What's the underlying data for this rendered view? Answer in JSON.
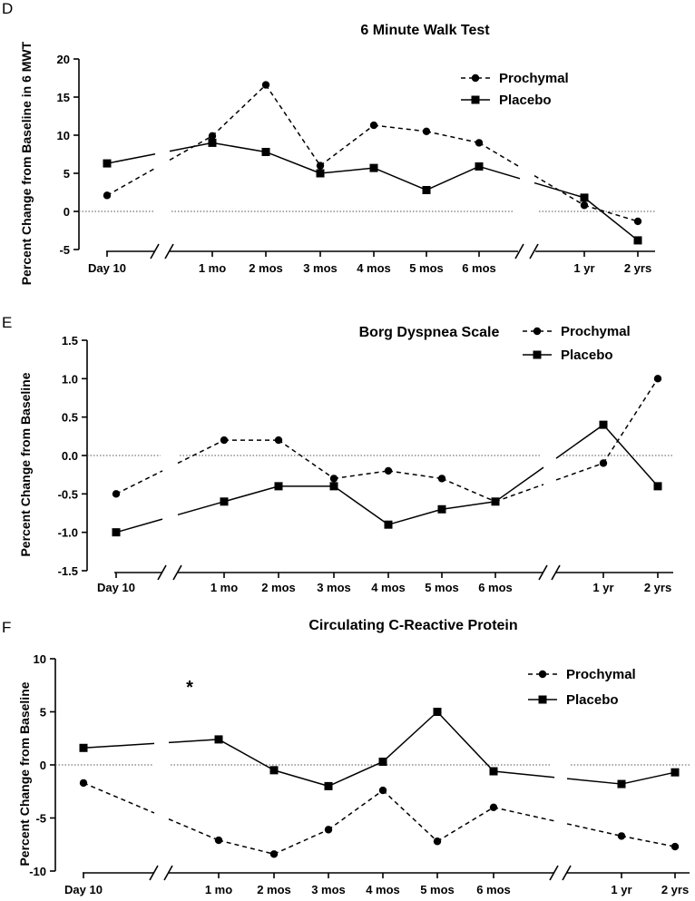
{
  "chart_data": [
    {
      "panel_label": "D",
      "type": "line",
      "title": "6 Minute Walk Test",
      "ylabel": "Percent Change from  Baseline in 6 MWT",
      "xlabel": "",
      "categories": [
        "Day 10",
        "1 mo",
        "2 mos",
        "3 mos",
        "4 mos",
        "5 mos",
        "6 mos",
        "1 yr",
        "2 yrs"
      ],
      "yticks": [
        20,
        15,
        10,
        5,
        0,
        -5
      ],
      "ylim": [
        -5,
        20
      ],
      "reference_line": 0,
      "legend_position": "top-right",
      "series": [
        {
          "name": "Prochymal",
          "style": "dashed",
          "marker": "circle",
          "values": [
            2.1,
            9.9,
            16.6,
            6.0,
            11.3,
            10.5,
            9.0,
            0.8,
            -1.3
          ]
        },
        {
          "name": "Placebo",
          "style": "solid",
          "marker": "square",
          "values": [
            6.3,
            9.0,
            7.8,
            5.0,
            5.7,
            2.8,
            5.9,
            1.8,
            -3.8
          ]
        }
      ]
    },
    {
      "panel_label": "E",
      "type": "line",
      "title": "Borg Dyspnea Scale",
      "ylabel": "Percent Change from  Baseline",
      "xlabel": "",
      "categories": [
        "Day 10",
        "1 mo",
        "2 mos",
        "3 mos",
        "4 mos",
        "5 mos",
        "6 mos",
        "1 yr",
        "2 yrs"
      ],
      "yticks": [
        "1.5",
        "1.0",
        "0.5",
        "0.0",
        "-0.5",
        "-1.0",
        "-1.5"
      ],
      "ylim": [
        -1.5,
        1.5
      ],
      "reference_line": 0,
      "legend_position": "top-right",
      "series": [
        {
          "name": "Prochymal",
          "style": "dashed",
          "marker": "circle",
          "values": [
            -0.5,
            0.2,
            0.2,
            -0.3,
            -0.2,
            -0.3,
            -0.6,
            -0.1,
            1.0
          ]
        },
        {
          "name": "Placebo",
          "style": "solid",
          "marker": "square",
          "values": [
            -1.0,
            -0.6,
            -0.4,
            -0.4,
            -0.9,
            -0.7,
            -0.6,
            0.4,
            -0.4
          ]
        }
      ]
    },
    {
      "panel_label": "F",
      "type": "line",
      "title": "Circulating C-Reactive Protein",
      "ylabel": "Percent Change from  Baseline",
      "xlabel": "",
      "categories": [
        "Day 10",
        "1 mo",
        "2 mos",
        "3 mos",
        "4 mos",
        "5 mos",
        "6 mos",
        "1 yr",
        "2 yrs"
      ],
      "yticks": [
        10,
        5,
        0,
        -5,
        -10
      ],
      "ylim": [
        -10,
        10
      ],
      "reference_line": 0,
      "annotation": "*",
      "legend_position": "top-right",
      "series": [
        {
          "name": "Prochymal",
          "style": "dashed",
          "marker": "circle",
          "values": [
            -1.7,
            -7.1,
            -8.4,
            -6.1,
            -2.4,
            -7.2,
            -4.0,
            -6.7,
            -7.7
          ]
        },
        {
          "name": "Placebo",
          "style": "solid",
          "marker": "square",
          "values": [
            1.6,
            2.4,
            -0.5,
            -2.0,
            0.3,
            5.0,
            -0.6,
            -1.8,
            -0.7
          ]
        }
      ]
    }
  ]
}
